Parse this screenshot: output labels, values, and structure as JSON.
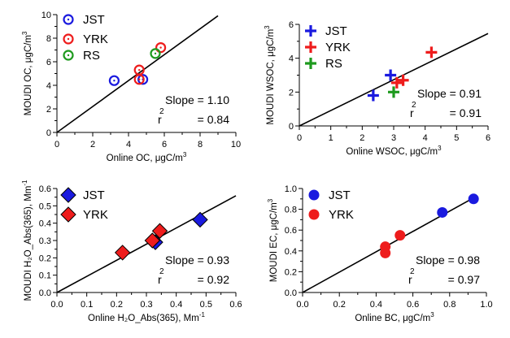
{
  "colors": {
    "JST": "#1a1adf",
    "YRK": "#ee1c1c",
    "RS": "#1e9a1e",
    "axis": "#000000"
  },
  "chart_data": [
    {
      "id": "oc",
      "type": "scatter",
      "marker": "circle-open-dot",
      "xlabel": "Online OC, μgC/m",
      "xlabel_sup": "3",
      "ylabel": "MOUDI OC, μgC/m",
      "ylabel_sup": "3",
      "xlim": [
        0,
        10
      ],
      "ylim": [
        0,
        10
      ],
      "xticks": [
        0,
        2,
        4,
        6,
        8,
        10
      ],
      "yticks": [
        0,
        2,
        4,
        6,
        8,
        10
      ],
      "series": [
        {
          "name": "JST",
          "color": "#1a1adf",
          "points": [
            [
              3.2,
              4.4
            ],
            [
              4.8,
              4.5
            ]
          ]
        },
        {
          "name": "YRK",
          "color": "#ee1c1c",
          "points": [
            [
              4.6,
              5.3
            ],
            [
              4.6,
              4.5
            ],
            [
              5.8,
              7.2
            ]
          ]
        },
        {
          "name": "RS",
          "color": "#1e9a1e",
          "points": [
            [
              5.5,
              6.7
            ]
          ]
        }
      ],
      "fit_line": {
        "x": [
          0,
          9
        ],
        "y": [
          0,
          9.9
        ]
      },
      "legend_position": "top-left",
      "slope_label": "Slope = 1.10",
      "r2_label": "r",
      "r2_sup": "2",
      "r2_value": "= 0.84"
    },
    {
      "id": "wsoc",
      "type": "scatter",
      "marker": "plus",
      "xlabel": "Online WSOC, μgC/m",
      "xlabel_sup": "3",
      "ylabel": "MOUDI WSOC, μgC/m",
      "ylabel_sup": "3",
      "xlim": [
        0,
        6
      ],
      "ylim": [
        0,
        6
      ],
      "xticks": [
        0,
        1,
        2,
        3,
        4,
        5,
        6
      ],
      "yticks": [
        0,
        2,
        4,
        6
      ],
      "series": [
        {
          "name": "JST",
          "color": "#1a1adf",
          "points": [
            [
              2.35,
              1.8
            ],
            [
              2.9,
              3.0
            ]
          ]
        },
        {
          "name": "YRK",
          "color": "#ee1c1c",
          "points": [
            [
              3.1,
              2.55
            ],
            [
              3.3,
              2.7
            ],
            [
              4.2,
              4.35
            ]
          ]
        },
        {
          "name": "RS",
          "color": "#1e9a1e",
          "points": [
            [
              3.0,
              2.0
            ]
          ]
        }
      ],
      "fit_line": {
        "x": [
          0,
          6
        ],
        "y": [
          0,
          5.46
        ]
      },
      "legend_position": "top-left",
      "slope_label": "Slope = 0.91",
      "r2_label": "r",
      "r2_sup": "2",
      "r2_value": "= 0.91"
    },
    {
      "id": "abs",
      "type": "scatter",
      "marker": "diamond",
      "xlabel": "Online H₂O_Abs(365), Mm",
      "xlabel_sup": "-1",
      "ylabel": "MOUDI H₂O_Abs(365), Mm",
      "ylabel_sup": "-1",
      "xlim": [
        0,
        0.6
      ],
      "ylim": [
        0,
        0.6
      ],
      "xticks": [
        0.0,
        0.1,
        0.2,
        0.3,
        0.4,
        0.5,
        0.6
      ],
      "yticks": [
        0.0,
        0.1,
        0.2,
        0.3,
        0.4,
        0.5,
        0.6
      ],
      "series": [
        {
          "name": "JST",
          "color": "#1a1adf",
          "points": [
            [
              0.33,
              0.29
            ],
            [
              0.48,
              0.42
            ]
          ]
        },
        {
          "name": "YRK",
          "color": "#ee1c1c",
          "points": [
            [
              0.22,
              0.23
            ],
            [
              0.32,
              0.3
            ],
            [
              0.345,
              0.355
            ]
          ]
        }
      ],
      "fit_line": {
        "x": [
          0,
          0.6
        ],
        "y": [
          0,
          0.558
        ]
      },
      "legend_position": "top-left",
      "slope_label": "Slope = 0.93",
      "r2_label": "r",
      "r2_sup": "2",
      "r2_value": "= 0.92"
    },
    {
      "id": "ec",
      "type": "scatter",
      "marker": "circle-filled",
      "xlabel": "Online BC, μgC/m",
      "xlabel_sup": "3",
      "ylabel": "MOUDI EC, μgC/m",
      "ylabel_sup": "3",
      "xlim": [
        0,
        1.0
      ],
      "ylim": [
        0,
        1.0
      ],
      "xticks": [
        0.0,
        0.2,
        0.4,
        0.6,
        0.8,
        1.0
      ],
      "yticks": [
        0.0,
        0.2,
        0.4,
        0.6,
        0.8,
        1.0
      ],
      "series": [
        {
          "name": "JST",
          "color": "#1a1adf",
          "points": [
            [
              0.76,
              0.77
            ],
            [
              0.93,
              0.9
            ]
          ]
        },
        {
          "name": "YRK",
          "color": "#ee1c1c",
          "points": [
            [
              0.45,
              0.44
            ],
            [
              0.45,
              0.38
            ],
            [
              0.53,
              0.55
            ]
          ]
        }
      ],
      "fit_line": {
        "x": [
          0,
          0.92
        ],
        "y": [
          0,
          0.9
        ]
      },
      "legend_position": "top-left",
      "slope_label": "Slope = 0.98",
      "r2_label": "r",
      "r2_sup": "2",
      "r2_value": "= 0.97"
    }
  ]
}
